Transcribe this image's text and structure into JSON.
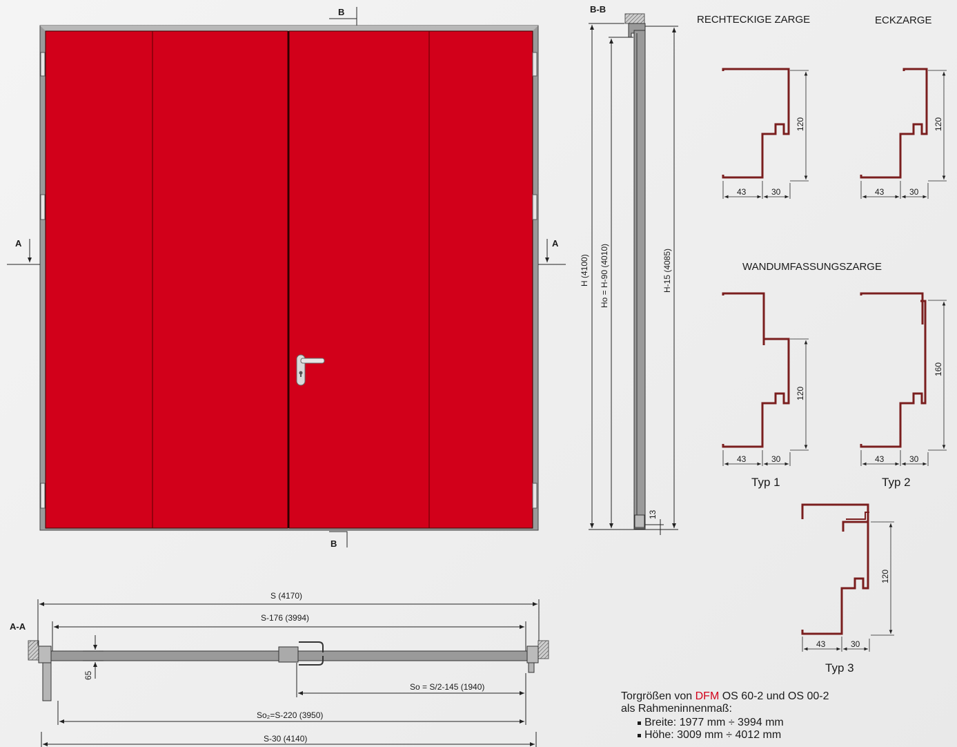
{
  "colors": {
    "door_red": "#d2001a",
    "frame_grey": "#9a9a9a",
    "profile_brown": "#7a1e1e",
    "line": "#222222"
  },
  "front_view": {
    "section_b_top": "B",
    "section_b_bottom": "B",
    "section_a_left": "A",
    "section_a_right": "A"
  },
  "section_bb": {
    "title": "B-B",
    "dim_h": "H (4100)",
    "dim_ho": "Ho = H-90 (4010)",
    "dim_h15": "H-15 (4085)",
    "dim_13": "13"
  },
  "section_aa": {
    "title": "A-A",
    "dim_s": "S (4170)",
    "dim_s176": "S-176 (3994)",
    "dim_65": "65",
    "dim_so": "So = S/2-145 (1940)",
    "dim_so2": "So₂=S-220 (3950)",
    "dim_s30": "S-30 (4140)"
  },
  "profiles": {
    "rect_title": "RECHTECKIGE ZARGE",
    "eck_title": "ECKZARGE",
    "wand_title": "WANDUMFASSUNGSZARGE",
    "rect": {
      "w1": "43",
      "w2": "30",
      "h": "120"
    },
    "eck": {
      "w1": "43",
      "w2": "30",
      "h": "120"
    },
    "typ1": {
      "label": "Typ 1",
      "w1": "43",
      "w2": "30",
      "h": "120"
    },
    "typ2": {
      "label": "Typ 2",
      "w1": "43",
      "w2": "30",
      "h": "160"
    },
    "typ3": {
      "label": "Typ 3",
      "w1": "43",
      "w2": "30",
      "h": "120"
    }
  },
  "spec": {
    "intro_pre": "Torgrößen von",
    "brand": "DFM",
    "intro_post": "OS 60-2 und OS 00-2",
    "line2": "als Rahmeninnenmaß:",
    "items": [
      "Breite: 1977 mm ÷ 3994 mm",
      "Höhe: 3009 mm ÷ 4012 mm"
    ]
  }
}
